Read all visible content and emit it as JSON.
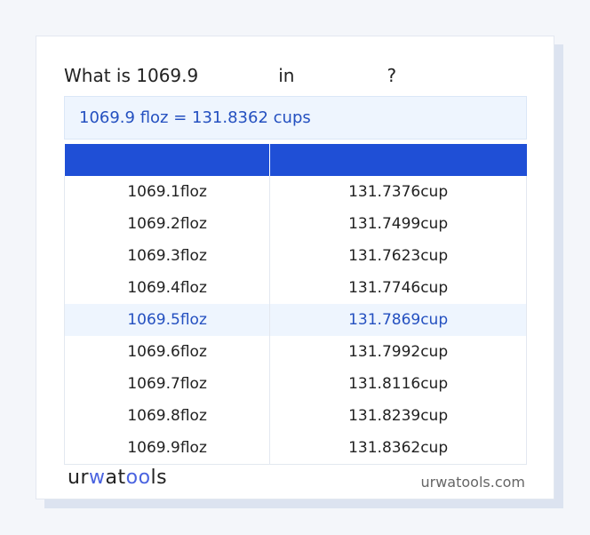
{
  "title": {
    "prefix": "What is 1069.9",
    "middle": "in",
    "suffix": "?"
  },
  "result": "1069.9 floz = 131.8362 cups",
  "table": {
    "headers": [
      "",
      ""
    ],
    "rows": [
      [
        "1069.1floz",
        "131.7376cup"
      ],
      [
        "1069.2floz",
        "131.7499cup"
      ],
      [
        "1069.3floz",
        "131.7623cup"
      ],
      [
        "1069.4floz",
        "131.7746cup"
      ],
      [
        "1069.5floz",
        "131.7869cup"
      ],
      [
        "1069.6floz",
        "131.7992cup"
      ],
      [
        "1069.7floz",
        "131.8116cup"
      ],
      [
        "1069.8floz",
        "131.8239cup"
      ],
      [
        "1069.9floz",
        "131.8362cup"
      ]
    ],
    "highlighted_row": 4
  },
  "footer": {
    "logo": "urwatools",
    "site": "urwatools.com"
  },
  "colors": {
    "accent": "#1f4fd6",
    "highlight_bg": "#eef5fe",
    "text_blue": "#2450c0"
  }
}
